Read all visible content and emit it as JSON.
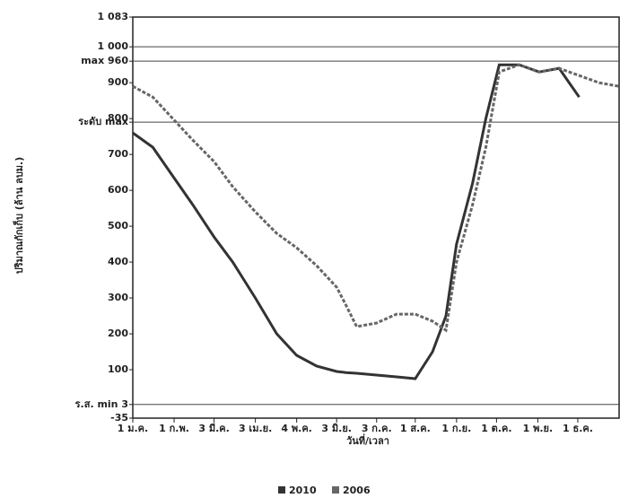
{
  "chart_data": {
    "type": "line",
    "x_label": "วันที่/เวลา",
    "y_label": "ปริมาณกักเก็บ (ล้าน ลบม.)",
    "x": [
      0,
      15,
      30,
      45,
      61,
      75,
      92,
      108,
      123,
      138,
      153,
      160,
      168,
      183,
      198,
      212,
      225,
      235,
      243,
      255,
      265,
      275,
      290,
      305,
      320,
      335,
      350,
      365
    ],
    "xlim": [
      0,
      365
    ],
    "xticks": [
      {
        "value": 0,
        "label": "1 ม.ค."
      },
      {
        "value": 31,
        "label": "1 ก.พ."
      },
      {
        "value": 61,
        "label": "3 มี.ค."
      },
      {
        "value": 92,
        "label": "3 เม.ย."
      },
      {
        "value": 123,
        "label": "4 พ.ค."
      },
      {
        "value": 153,
        "label": "3 มิ.ย."
      },
      {
        "value": 183,
        "label": "3 ก.ค."
      },
      {
        "value": 212,
        "label": "1 ส.ค."
      },
      {
        "value": 243,
        "label": "1 ก.ย."
      },
      {
        "value": 273,
        "label": "1 ต.ค."
      },
      {
        "value": 304,
        "label": "1 พ.ย."
      },
      {
        "value": 334,
        "label": "1 ธ.ค."
      }
    ],
    "ylim": [
      -35,
      1083
    ],
    "yticks": [
      {
        "value": 1083,
        "label": "1 083"
      },
      {
        "value": 1000,
        "label": "1 000"
      },
      {
        "value": 960,
        "label": "max 960"
      },
      900,
      {
        "value": 790,
        "label": "ระดับ max"
      },
      800,
      700,
      600,
      500,
      400,
      300,
      200,
      100,
      {
        "value": 3,
        "label": "ร.ส. min 3"
      },
      -35
    ],
    "series": [
      {
        "name": "2010",
        "color": "#333333",
        "values": [
          760,
          720,
          640,
          560,
          470,
          400,
          300,
          200,
          140,
          110,
          95,
          92,
          90,
          85,
          80,
          75,
          150,
          250,
          450,
          620,
          800,
          950,
          950,
          930,
          940,
          860,
          null,
          null
        ]
      },
      {
        "name": "2006",
        "color": "#666666",
        "values": [
          890,
          860,
          800,
          740,
          680,
          610,
          540,
          480,
          440,
          390,
          330,
          280,
          220,
          230,
          255,
          255,
          235,
          210,
          400,
          560,
          720,
          930,
          950,
          930,
          940,
          920,
          900,
          890
        ]
      }
    ]
  }
}
